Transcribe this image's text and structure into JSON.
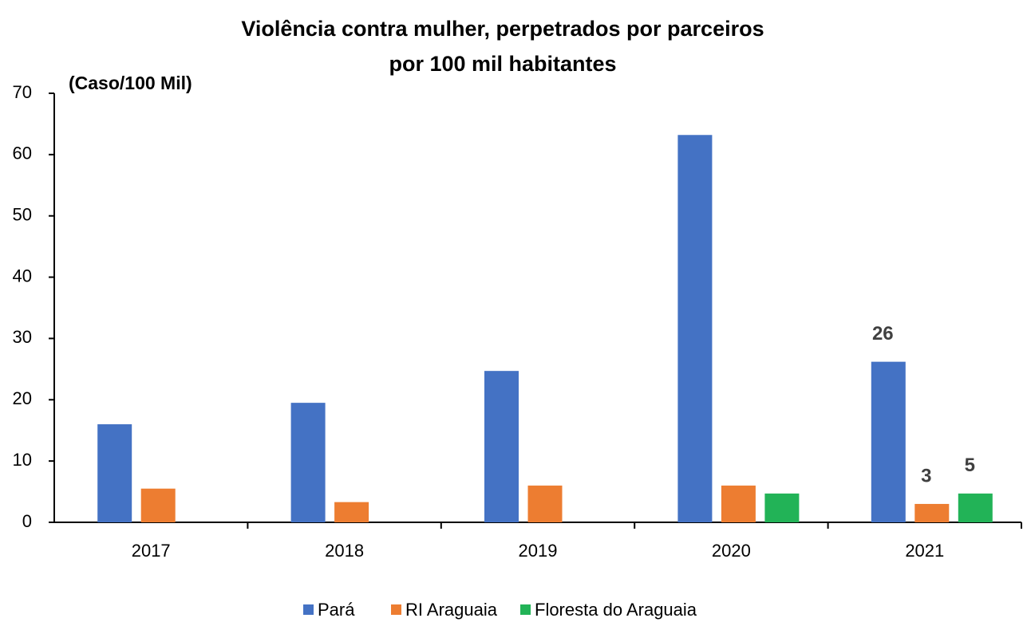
{
  "chart_data": {
    "type": "bar",
    "title": [
      "Violência contra mulher, perpetrados por parceiros",
      "por 100 mil habitantes"
    ],
    "y_label": "(Caso/100 Mil)",
    "categories": [
      "2017",
      "2018",
      "2019",
      "2020",
      "2021"
    ],
    "series": [
      {
        "name": "Pará",
        "color": "#4472c4",
        "values": [
          16,
          19.5,
          24.7,
          63.2,
          26.2
        ],
        "value_labels": [
          null,
          null,
          null,
          null,
          "26"
        ]
      },
      {
        "name": "RI Araguaia",
        "color": "#ed7d31",
        "values": [
          5.5,
          3.3,
          6,
          6,
          3
        ],
        "value_labels": [
          null,
          null,
          null,
          null,
          "3"
        ]
      },
      {
        "name": "Floresta do Araguaia",
        "color": "#22b357",
        "values": [
          null,
          null,
          null,
          4.7,
          4.7
        ],
        "value_labels": [
          null,
          null,
          null,
          null,
          "5"
        ]
      }
    ],
    "ylim": [
      0,
      70
    ],
    "yticks": [
      0,
      10,
      20,
      30,
      40,
      50,
      60,
      70
    ],
    "grid": false,
    "legend": "bottom"
  }
}
